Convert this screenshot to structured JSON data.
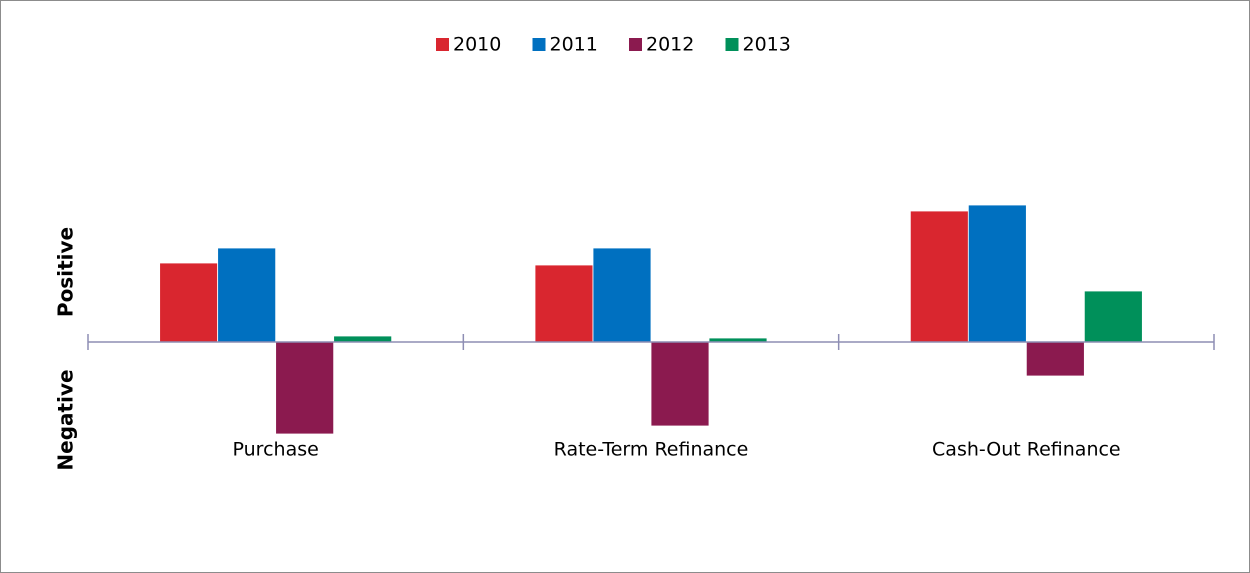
{
  "chart_data": {
    "type": "bar",
    "categories": [
      "Purchase",
      "Rate-Term Refinance",
      "Cash-Out Refinance"
    ],
    "series": [
      {
        "name": "2010",
        "color": "#d9262f",
        "values": [
          79,
          77,
          131
        ]
      },
      {
        "name": "2011",
        "color": "#0070c0",
        "values": [
          94,
          94,
          137
        ]
      },
      {
        "name": "2012",
        "color": "#8b1a4f",
        "values": [
          -92,
          -84,
          -34
        ]
      },
      {
        "name": "2013",
        "color": "#00905a",
        "values": [
          6,
          4,
          51
        ]
      }
    ],
    "ylabels": [
      "Positive",
      "Negative"
    ],
    "ylim": [
      -200,
      200
    ],
    "legend": "top"
  }
}
